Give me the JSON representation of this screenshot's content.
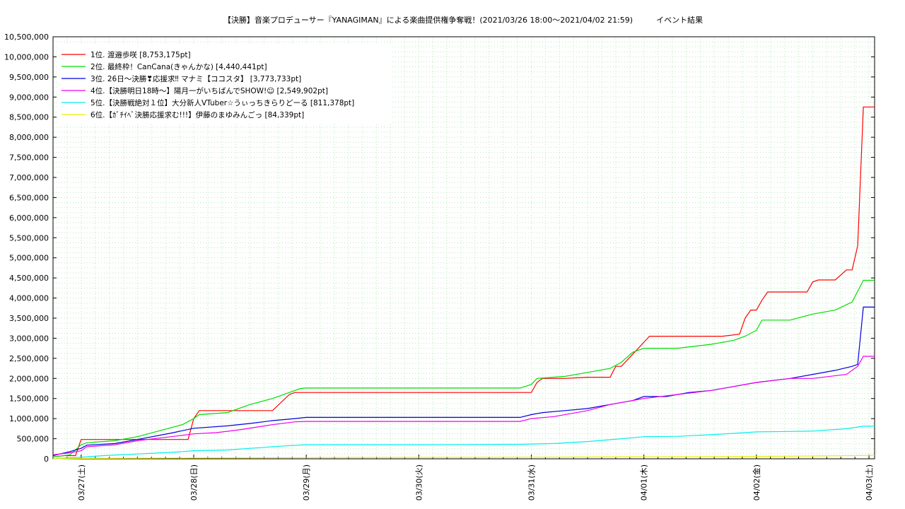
{
  "chart_data": {
    "type": "line",
    "title": "【決勝】音楽プロデューサー『YANAGIMAN』による楽曲提供権争奪戦！(2021/03/26 18:00〜2021/04/02 21:59)　　　イベント結果",
    "xlabel": "",
    "ylabel": "",
    "ylim": [
      0,
      10500000
    ],
    "xlim": [
      -0.25,
      7.05
    ],
    "grid": true,
    "legend_position": "top-left",
    "y_ticks": [
      0,
      500000,
      1000000,
      1500000,
      2000000,
      2500000,
      3000000,
      3500000,
      4000000,
      4500000,
      5000000,
      5500000,
      6000000,
      6500000,
      7000000,
      7500000,
      8000000,
      8500000,
      9000000,
      9500000,
      10000000,
      10500000
    ],
    "y_tick_labels": [
      "0",
      "500,000",
      "1,000,000",
      "1,500,000",
      "2,000,000",
      "2,500,000",
      "3,000,000",
      "3,500,000",
      "4,000,000",
      "4,500,000",
      "5,000,000",
      "5,500,000",
      "6,000,000",
      "6,500,000",
      "7,000,000",
      "7,500,000",
      "8,000,000",
      "8,500,000",
      "9,000,000",
      "9,500,000",
      "10,000,000",
      "10,500,000"
    ],
    "x_ticks": [
      0,
      1,
      2,
      3,
      4,
      5,
      6,
      7
    ],
    "x_tick_labels": [
      "03/27(土)",
      "03/28(日)",
      "03/29(月)",
      "03/30(火)",
      "03/31(水)",
      "04/01(木)",
      "04/02(金)",
      "04/03(土)"
    ],
    "series": [
      {
        "name": "1位. 渡邉歩咲 [8,753,175pt]",
        "color": "#ff0000",
        "x": [
          -0.25,
          -0.15,
          -0.05,
          0.0,
          0.2,
          0.3,
          0.5,
          0.8,
          0.95,
          1.0,
          1.05,
          1.7,
          1.85,
          1.9,
          4.0,
          4.05,
          4.1,
          4.3,
          4.5,
          4.7,
          4.75,
          4.8,
          4.9,
          5.0,
          5.05,
          5.1,
          5.3,
          5.7,
          5.85,
          5.9,
          5.95,
          6.0,
          6.05,
          6.1,
          6.3,
          6.45,
          6.5,
          6.55,
          6.7,
          6.8,
          6.85,
          6.9,
          6.95,
          7.05
        ],
        "y": [
          50000,
          80000,
          80000,
          480000,
          480000,
          480000,
          480000,
          480000,
          480000,
          1000000,
          1200000,
          1200000,
          1600000,
          1650000,
          1650000,
          1900000,
          2000000,
          2000000,
          2030000,
          2030000,
          2300000,
          2300000,
          2600000,
          2900000,
          3050000,
          3050000,
          3050000,
          3050000,
          3100000,
          3500000,
          3700000,
          3700000,
          3950000,
          4150000,
          4150000,
          4150000,
          4400000,
          4450000,
          4450000,
          4700000,
          4700000,
          5300000,
          8753175,
          8753175
        ]
      },
      {
        "name": "2位. 最終枠！CanCana(きゃんかな) [4,440,441pt]",
        "color": "#00dd00",
        "x": [
          -0.25,
          -0.1,
          0.0,
          0.05,
          0.3,
          0.5,
          0.7,
          0.9,
          1.0,
          1.05,
          1.3,
          1.5,
          1.7,
          1.85,
          1.95,
          2.0,
          3.9,
          4.0,
          4.05,
          4.3,
          4.5,
          4.7,
          4.8,
          4.9,
          5.0,
          5.05,
          5.3,
          5.6,
          5.8,
          5.9,
          6.0,
          6.05,
          6.3,
          6.5,
          6.7,
          6.85,
          6.95,
          7.05
        ],
        "y": [
          50000,
          100000,
          350000,
          400000,
          450000,
          550000,
          700000,
          850000,
          1000000,
          1100000,
          1150000,
          1350000,
          1500000,
          1650000,
          1750000,
          1760000,
          1760000,
          1850000,
          2000000,
          2050000,
          2150000,
          2250000,
          2400000,
          2650000,
          2750000,
          2750000,
          2750000,
          2850000,
          2950000,
          3050000,
          3200000,
          3450000,
          3450000,
          3600000,
          3700000,
          3900000,
          4440441,
          4440441
        ]
      },
      {
        "name": "3位. 26日〜決勝❣応援求‼ マナミ【ココスタ】 [3,773,733pt]",
        "color": "#0000dd",
        "x": [
          -0.25,
          -0.1,
          0.0,
          0.05,
          0.3,
          0.5,
          0.8,
          1.0,
          1.3,
          1.5,
          1.7,
          1.9,
          2.0,
          3.9,
          4.0,
          4.1,
          4.3,
          4.5,
          4.7,
          4.9,
          5.0,
          5.2,
          5.4,
          5.6,
          5.8,
          6.0,
          6.3,
          6.5,
          6.7,
          6.85,
          6.9,
          6.95,
          7.05
        ],
        "y": [
          80000,
          180000,
          260000,
          340000,
          380000,
          480000,
          640000,
          760000,
          820000,
          880000,
          950000,
          1000000,
          1030000,
          1030000,
          1100000,
          1150000,
          1200000,
          1250000,
          1350000,
          1450000,
          1550000,
          1550000,
          1650000,
          1700000,
          1800000,
          1900000,
          2000000,
          2100000,
          2200000,
          2300000,
          2350000,
          3773733,
          3773733
        ]
      },
      {
        "name": "4位.【決勝明日18時〜】陽月一がいちばんでSHOW!☺ [2,549,902pt]",
        "color": "#ee00ee",
        "x": [
          -0.25,
          -0.1,
          0.0,
          0.05,
          0.3,
          0.5,
          0.8,
          1.0,
          1.2,
          1.4,
          1.7,
          1.9,
          2.0,
          3.9,
          4.0,
          4.2,
          4.5,
          4.7,
          4.9,
          5.0,
          5.3,
          5.6,
          5.8,
          6.0,
          6.3,
          6.5,
          6.8,
          6.9,
          6.95,
          7.05
        ],
        "y": [
          100000,
          150000,
          200000,
          300000,
          350000,
          450000,
          550000,
          620000,
          650000,
          720000,
          850000,
          920000,
          930000,
          930000,
          1000000,
          1050000,
          1200000,
          1350000,
          1450000,
          1500000,
          1600000,
          1700000,
          1800000,
          1900000,
          2000000,
          2000000,
          2100000,
          2300000,
          2549902,
          2549902
        ]
      },
      {
        "name": "5位.【決勝戦絶対１位】大分新人VTuber☆うぃっちきらりどーる [811,378pt]",
        "color": "#00eeee",
        "x": [
          -0.25,
          0.0,
          0.2,
          0.5,
          0.8,
          1.0,
          1.3,
          1.5,
          1.8,
          2.0,
          3.0,
          3.9,
          4.2,
          4.5,
          4.8,
          5.0,
          5.3,
          5.6,
          5.9,
          6.0,
          6.3,
          6.5,
          6.8,
          6.95,
          7.05
        ],
        "y": [
          0,
          40000,
          80000,
          120000,
          160000,
          200000,
          220000,
          260000,
          320000,
          350000,
          350000,
          360000,
          380000,
          430000,
          500000,
          550000,
          560000,
          600000,
          650000,
          670000,
          680000,
          690000,
          750000,
          811378,
          811378
        ]
      },
      {
        "name": "6位.【ｶﾞﾁｲﾍﾞ決勝応援求む!!!】伊藤のまゆみんごっ [84,339pt]",
        "color": "#eeee00",
        "x": [
          -0.25,
          0.0,
          1.0,
          2.0,
          3.0,
          4.0,
          5.0,
          6.0,
          6.5,
          7.05
        ],
        "y": [
          0,
          10000,
          20000,
          30000,
          35000,
          40000,
          50000,
          60000,
          70000,
          84339
        ]
      }
    ]
  }
}
